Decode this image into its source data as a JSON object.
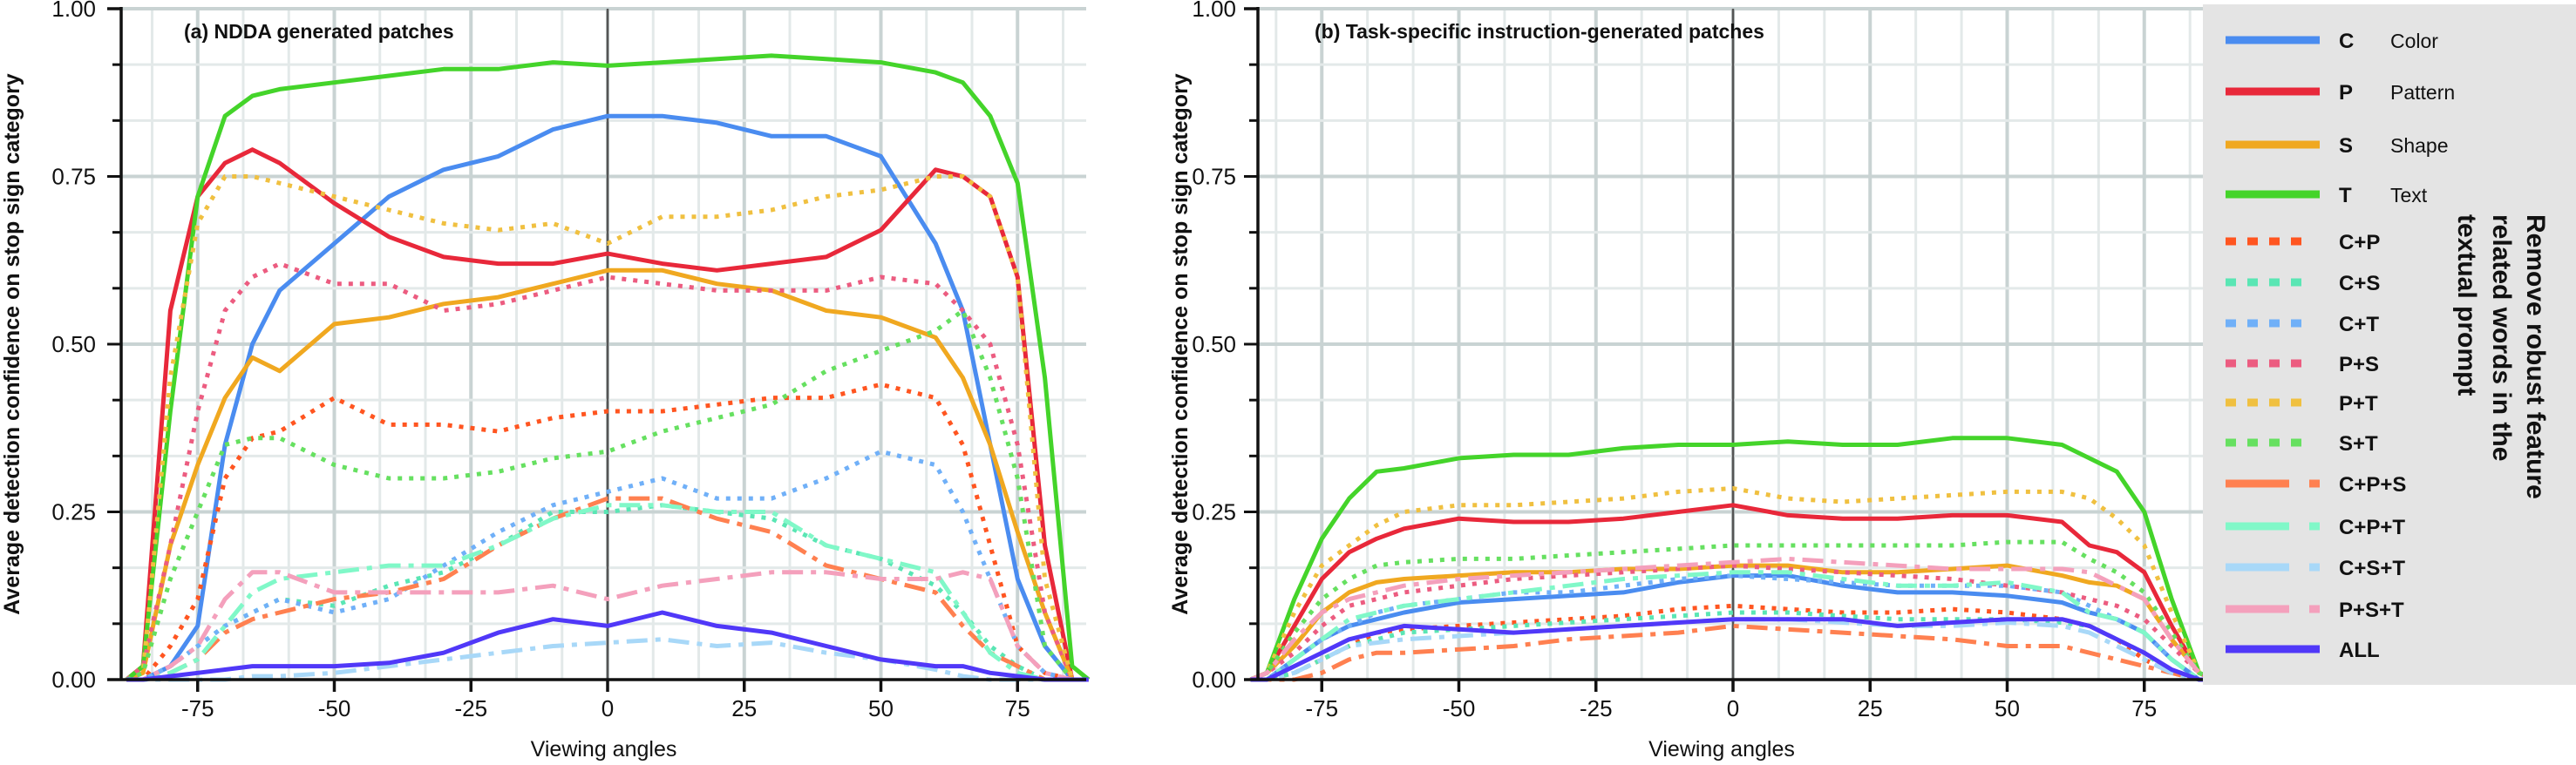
{
  "legend": {
    "title_lines": [
      "Remove robust feature",
      "related words in the",
      "textual prompt"
    ],
    "items": [
      {
        "abbrev": "C",
        "name": "Color",
        "color": "#4a8cf0",
        "style": "solid"
      },
      {
        "abbrev": "P",
        "name": "Pattern",
        "color": "#e8283a",
        "style": "solid"
      },
      {
        "abbrev": "S",
        "name": "Shape",
        "color": "#f0a820",
        "style": "solid"
      },
      {
        "abbrev": "T",
        "name": "Text",
        "color": "#44d42a",
        "style": "solid"
      },
      {
        "abbrev": "C+P",
        "name": "",
        "color": "#ff5520",
        "style": "dotted"
      },
      {
        "abbrev": "C+S",
        "name": "",
        "color": "#5ae6b4",
        "style": "dotted"
      },
      {
        "abbrev": "C+T",
        "name": "",
        "color": "#70b0f8",
        "style": "dotted"
      },
      {
        "abbrev": "P+S",
        "name": "",
        "color": "#ec5c80",
        "style": "dotted"
      },
      {
        "abbrev": "P+T",
        "name": "",
        "color": "#f0c040",
        "style": "dotted"
      },
      {
        "abbrev": "S+T",
        "name": "",
        "color": "#66e060",
        "style": "dotted"
      },
      {
        "abbrev": "C+P+S",
        "name": "",
        "color": "#ff8050",
        "style": "dashdot"
      },
      {
        "abbrev": "C+P+T",
        "name": "",
        "color": "#80f8c8",
        "style": "dashdot"
      },
      {
        "abbrev": "C+S+T",
        "name": "",
        "color": "#a8d8f8",
        "style": "dashdot"
      },
      {
        "abbrev": "P+S+T",
        "name": "",
        "color": "#f4a0bc",
        "style": "dashdot"
      },
      {
        "abbrev": "ALL",
        "name": "",
        "color": "#5038f8",
        "style": "solid"
      }
    ]
  },
  "chart_data": [
    {
      "type": "line",
      "title": "(a) NDDA generated patches",
      "xlabel": "Viewing angles",
      "ylabel": "Average detection confidence on stop sign category",
      "xlim": [
        -91,
        88
      ],
      "ylim": [
        0,
        1
      ],
      "xticks": [
        "-75",
        "-50",
        "-25",
        "0",
        "25",
        "50",
        "75"
      ],
      "yticks": [
        "0.00",
        "0.25",
        "0.50",
        "0.75",
        "1.00"
      ],
      "grid": true,
      "x": [
        -88,
        -85,
        -80,
        -75,
        -70,
        -65,
        -60,
        -50,
        -40,
        -30,
        -20,
        -10,
        0,
        10,
        20,
        30,
        40,
        50,
        60,
        65,
        70,
        75,
        80,
        85,
        88
      ],
      "series": [
        {
          "name": "C",
          "values": [
            0,
            0,
            0.02,
            0.08,
            0.35,
            0.5,
            0.58,
            0.65,
            0.72,
            0.76,
            0.78,
            0.82,
            0.84,
            0.84,
            0.83,
            0.81,
            0.81,
            0.78,
            0.65,
            0.55,
            0.35,
            0.15,
            0.05,
            0,
            0
          ]
        },
        {
          "name": "P",
          "values": [
            0,
            0.02,
            0.55,
            0.72,
            0.77,
            0.79,
            0.77,
            0.71,
            0.66,
            0.63,
            0.62,
            0.62,
            0.635,
            0.62,
            0.61,
            0.62,
            0.63,
            0.67,
            0.76,
            0.75,
            0.72,
            0.6,
            0.2,
            0,
            0
          ]
        },
        {
          "name": "S",
          "values": [
            0,
            0.01,
            0.2,
            0.32,
            0.42,
            0.48,
            0.46,
            0.53,
            0.54,
            0.56,
            0.57,
            0.59,
            0.61,
            0.61,
            0.59,
            0.58,
            0.55,
            0.54,
            0.51,
            0.45,
            0.35,
            0.22,
            0.1,
            0,
            0
          ]
        },
        {
          "name": "T",
          "values": [
            0,
            0.02,
            0.4,
            0.72,
            0.84,
            0.87,
            0.88,
            0.89,
            0.9,
            0.91,
            0.91,
            0.92,
            0.915,
            0.92,
            0.925,
            0.93,
            0.925,
            0.92,
            0.905,
            0.89,
            0.84,
            0.74,
            0.45,
            0.02,
            0
          ]
        },
        {
          "name": "C+P",
          "values": [
            0,
            0,
            0.05,
            0.12,
            0.3,
            0.36,
            0.37,
            0.42,
            0.38,
            0.38,
            0.37,
            0.39,
            0.4,
            0.4,
            0.41,
            0.42,
            0.42,
            0.44,
            0.42,
            0.35,
            0.2,
            0.05,
            0.01,
            0,
            0
          ]
        },
        {
          "name": "C+S",
          "values": [
            0,
            0,
            0.02,
            0.05,
            0.08,
            0.1,
            0.12,
            0.11,
            0.14,
            0.16,
            0.2,
            0.25,
            0.25,
            0.26,
            0.25,
            0.24,
            0.2,
            0.18,
            0.14,
            0.1,
            0.05,
            0.02,
            0,
            0,
            0
          ]
        },
        {
          "name": "C+T",
          "values": [
            0,
            0,
            0.02,
            0.05,
            0.08,
            0.1,
            0.12,
            0.1,
            0.12,
            0.17,
            0.22,
            0.26,
            0.28,
            0.3,
            0.27,
            0.27,
            0.3,
            0.34,
            0.32,
            0.25,
            0.15,
            0.05,
            0.01,
            0,
            0
          ]
        },
        {
          "name": "P+S",
          "values": [
            0,
            0.02,
            0.2,
            0.4,
            0.55,
            0.6,
            0.62,
            0.59,
            0.59,
            0.55,
            0.56,
            0.58,
            0.6,
            0.59,
            0.58,
            0.58,
            0.58,
            0.6,
            0.59,
            0.55,
            0.5,
            0.35,
            0.1,
            0,
            0
          ]
        },
        {
          "name": "P+T",
          "values": [
            0,
            0.01,
            0.45,
            0.68,
            0.75,
            0.75,
            0.74,
            0.72,
            0.7,
            0.68,
            0.67,
            0.68,
            0.65,
            0.69,
            0.69,
            0.7,
            0.72,
            0.73,
            0.75,
            0.75,
            0.72,
            0.6,
            0.15,
            0,
            0
          ]
        },
        {
          "name": "S+T",
          "values": [
            0,
            0.01,
            0.15,
            0.25,
            0.35,
            0.36,
            0.36,
            0.32,
            0.3,
            0.3,
            0.31,
            0.33,
            0.34,
            0.37,
            0.39,
            0.41,
            0.46,
            0.49,
            0.52,
            0.55,
            0.45,
            0.3,
            0.05,
            0,
            0
          ]
        },
        {
          "name": "C+P+S",
          "values": [
            0,
            0,
            0.01,
            0.03,
            0.07,
            0.09,
            0.1,
            0.12,
            0.13,
            0.15,
            0.2,
            0.24,
            0.27,
            0.27,
            0.24,
            0.22,
            0.17,
            0.15,
            0.13,
            0.08,
            0.04,
            0.02,
            0,
            0,
            0
          ]
        },
        {
          "name": "C+P+T",
          "values": [
            0,
            0,
            0.01,
            0.03,
            0.08,
            0.13,
            0.15,
            0.16,
            0.17,
            0.17,
            0.2,
            0.24,
            0.26,
            0.26,
            0.25,
            0.25,
            0.2,
            0.18,
            0.16,
            0.1,
            0.04,
            0.01,
            0,
            0,
            0
          ]
        },
        {
          "name": "C+S+T",
          "values": [
            0,
            0,
            0,
            0,
            0,
            0.005,
            0.005,
            0.01,
            0.02,
            0.03,
            0.04,
            0.05,
            0.055,
            0.06,
            0.05,
            0.055,
            0.04,
            0.03,
            0.015,
            0.005,
            0,
            0,
            0,
            0,
            0
          ]
        },
        {
          "name": "P+S+T",
          "values": [
            0,
            0,
            0.02,
            0.05,
            0.12,
            0.16,
            0.16,
            0.13,
            0.13,
            0.13,
            0.13,
            0.14,
            0.12,
            0.14,
            0.15,
            0.16,
            0.16,
            0.15,
            0.15,
            0.16,
            0.15,
            0.05,
            0.01,
            0,
            0
          ]
        },
        {
          "name": "ALL",
          "values": [
            0,
            0,
            0.005,
            0.01,
            0.015,
            0.02,
            0.02,
            0.02,
            0.025,
            0.04,
            0.07,
            0.09,
            0.08,
            0.1,
            0.08,
            0.07,
            0.05,
            0.03,
            0.02,
            0.02,
            0.01,
            0.005,
            0,
            0,
            0
          ]
        }
      ]
    },
    {
      "type": "line",
      "title": "(b) Task-specific instruction-generated patches",
      "xlabel": "Viewing angles",
      "ylabel": "Average detection confidence on stop sign category",
      "xlim": [
        -87,
        85
      ],
      "ylim": [
        0,
        1
      ],
      "xticks": [
        "-75",
        "-50",
        "-25",
        "0",
        "25",
        "50",
        "75"
      ],
      "yticks": [
        "0.00",
        "0.25",
        "0.50",
        "0.75",
        "1.00"
      ],
      "grid": true,
      "x": [
        -88,
        -85,
        -80,
        -75,
        -70,
        -65,
        -60,
        -50,
        -40,
        -30,
        -20,
        -10,
        0,
        10,
        20,
        30,
        40,
        50,
        60,
        65,
        70,
        75,
        80,
        85,
        88
      ],
      "series": [
        {
          "name": "C",
          "values": [
            0,
            0,
            0.03,
            0.06,
            0.08,
            0.09,
            0.1,
            0.115,
            0.12,
            0.125,
            0.13,
            0.145,
            0.155,
            0.155,
            0.14,
            0.13,
            0.13,
            0.125,
            0.115,
            0.1,
            0.09,
            0.07,
            0.03,
            0,
            0
          ]
        },
        {
          "name": "P",
          "values": [
            0,
            0.01,
            0.08,
            0.15,
            0.19,
            0.21,
            0.225,
            0.24,
            0.235,
            0.235,
            0.24,
            0.25,
            0.26,
            0.245,
            0.24,
            0.24,
            0.245,
            0.245,
            0.235,
            0.2,
            0.19,
            0.16,
            0.08,
            0.01,
            0
          ]
        },
        {
          "name": "S",
          "values": [
            0,
            0.01,
            0.05,
            0.1,
            0.13,
            0.145,
            0.15,
            0.155,
            0.16,
            0.16,
            0.165,
            0.165,
            0.17,
            0.17,
            0.16,
            0.16,
            0.165,
            0.17,
            0.155,
            0.145,
            0.14,
            0.12,
            0.06,
            0.01,
            0
          ]
        },
        {
          "name": "T",
          "values": [
            0,
            0.01,
            0.12,
            0.21,
            0.27,
            0.31,
            0.315,
            0.33,
            0.335,
            0.335,
            0.345,
            0.35,
            0.35,
            0.355,
            0.35,
            0.35,
            0.36,
            0.36,
            0.35,
            0.33,
            0.31,
            0.25,
            0.12,
            0.01,
            0
          ]
        },
        {
          "name": "C+P",
          "values": [
            0,
            0,
            0.01,
            0.03,
            0.05,
            0.07,
            0.075,
            0.08,
            0.085,
            0.09,
            0.095,
            0.105,
            0.11,
            0.105,
            0.1,
            0.1,
            0.105,
            0.1,
            0.09,
            0.08,
            0.06,
            0.03,
            0.01,
            0,
            0
          ]
        },
        {
          "name": "C+S",
          "values": [
            0,
            0,
            0.01,
            0.03,
            0.05,
            0.06,
            0.07,
            0.075,
            0.08,
            0.085,
            0.09,
            0.095,
            0.1,
            0.1,
            0.095,
            0.09,
            0.09,
            0.09,
            0.085,
            0.08,
            0.06,
            0.04,
            0.01,
            0,
            0
          ]
        },
        {
          "name": "C+T",
          "values": [
            0,
            0,
            0.03,
            0.06,
            0.08,
            0.1,
            0.11,
            0.12,
            0.13,
            0.13,
            0.14,
            0.15,
            0.155,
            0.15,
            0.145,
            0.14,
            0.14,
            0.14,
            0.13,
            0.11,
            0.09,
            0.07,
            0.03,
            0,
            0
          ]
        },
        {
          "name": "P+S",
          "values": [
            0,
            0.01,
            0.04,
            0.08,
            0.11,
            0.12,
            0.13,
            0.14,
            0.15,
            0.155,
            0.16,
            0.165,
            0.17,
            0.165,
            0.16,
            0.155,
            0.15,
            0.14,
            0.13,
            0.12,
            0.11,
            0.09,
            0.05,
            0.01,
            0
          ]
        },
        {
          "name": "P+T",
          "values": [
            0,
            0.01,
            0.1,
            0.17,
            0.2,
            0.23,
            0.25,
            0.26,
            0.26,
            0.265,
            0.27,
            0.28,
            0.285,
            0.27,
            0.265,
            0.27,
            0.275,
            0.28,
            0.28,
            0.27,
            0.24,
            0.2,
            0.1,
            0.01,
            0
          ]
        },
        {
          "name": "S+T",
          "values": [
            0,
            0.01,
            0.07,
            0.12,
            0.15,
            0.17,
            0.175,
            0.18,
            0.18,
            0.185,
            0.19,
            0.195,
            0.2,
            0.2,
            0.2,
            0.2,
            0.2,
            0.205,
            0.205,
            0.18,
            0.16,
            0.13,
            0.07,
            0.01,
            0
          ]
        },
        {
          "name": "C+P+S",
          "values": [
            0,
            0,
            0,
            0.01,
            0.03,
            0.04,
            0.04,
            0.045,
            0.05,
            0.06,
            0.065,
            0.07,
            0.08,
            0.075,
            0.07,
            0.065,
            0.06,
            0.05,
            0.05,
            0.04,
            0.03,
            0.02,
            0.01,
            0,
            0
          ]
        },
        {
          "name": "C+P+T",
          "values": [
            0,
            0,
            0.03,
            0.06,
            0.09,
            0.1,
            0.11,
            0.12,
            0.13,
            0.14,
            0.15,
            0.155,
            0.16,
            0.16,
            0.15,
            0.14,
            0.14,
            0.145,
            0.13,
            0.1,
            0.09,
            0.07,
            0.03,
            0,
            0
          ]
        },
        {
          "name": "C+S+T",
          "values": [
            0,
            0,
            0.01,
            0.03,
            0.05,
            0.055,
            0.06,
            0.065,
            0.07,
            0.075,
            0.08,
            0.085,
            0.09,
            0.09,
            0.085,
            0.08,
            0.08,
            0.085,
            0.08,
            0.07,
            0.05,
            0.03,
            0.01,
            0,
            0
          ]
        },
        {
          "name": "P+S+T",
          "values": [
            0,
            0.01,
            0.06,
            0.1,
            0.12,
            0.13,
            0.14,
            0.15,
            0.155,
            0.16,
            0.165,
            0.17,
            0.175,
            0.18,
            0.175,
            0.17,
            0.165,
            0.165,
            0.165,
            0.16,
            0.14,
            0.12,
            0.06,
            0.01,
            0
          ]
        },
        {
          "name": "ALL",
          "values": [
            0,
            0,
            0.02,
            0.04,
            0.06,
            0.07,
            0.08,
            0.075,
            0.07,
            0.075,
            0.08,
            0.085,
            0.09,
            0.09,
            0.09,
            0.08,
            0.085,
            0.09,
            0.09,
            0.08,
            0.06,
            0.04,
            0.015,
            0,
            0
          ]
        }
      ]
    }
  ]
}
